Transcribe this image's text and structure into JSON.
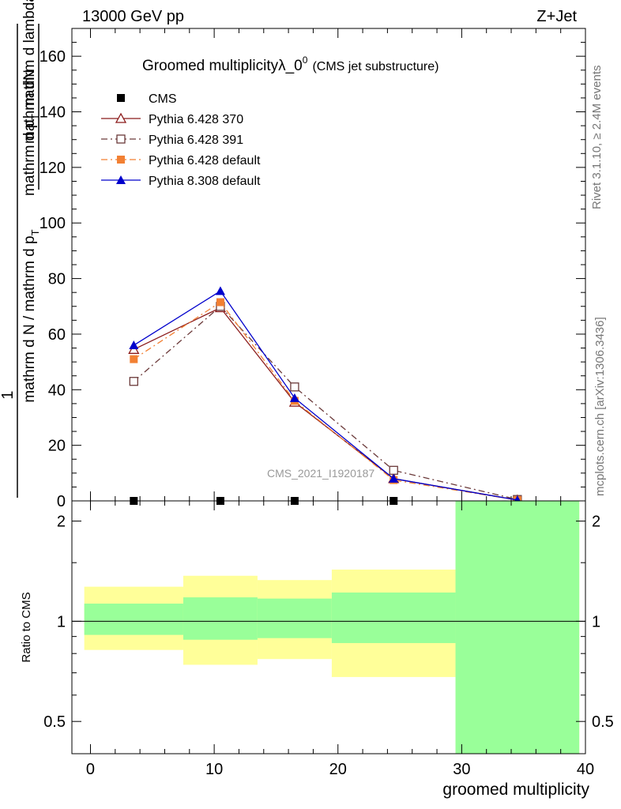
{
  "header": {
    "left": "13000 GeV pp",
    "right": "Z+Jet"
  },
  "side_labels": {
    "rivet": "Rivet 3.1.10, ≥ 2.4M events",
    "mcplots": "mcplots.cern.ch [arXiv:1306.3436]"
  },
  "chart_data": [
    {
      "type": "line",
      "title": "Groomed multiplicityλ_0",
      "title_superscript": "0",
      "subtitle": "(CMS jet substructure)",
      "watermark": "CMS_2021_I1920187",
      "ylabel_numerator": "mathrm dN",
      "ylabel_denominator": "mathrm d N / mathrm d p",
      "ylabel_denominator_sub": "T",
      "ylabel_denominator_cont": "mathrm d p",
      "ylabel_denominator_sub2": "T",
      "ylabel_denominator_end": "mathrm d lambda",
      "ylabel_prefix": "1",
      "ylim": [
        0,
        170
      ],
      "yticks": [
        0,
        20,
        40,
        60,
        80,
        100,
        120,
        140,
        160
      ],
      "xlim": [
        -1.5,
        40
      ],
      "x": [
        3.5,
        10.5,
        16.5,
        24.5,
        34.5
      ],
      "series": [
        {
          "name": "CMS",
          "color": "#000000",
          "marker": "square-filled",
          "dash": "none",
          "values": [
            0,
            0,
            0,
            0,
            0
          ]
        },
        {
          "name": "Pythia 6.428 370",
          "color": "#8b1a1a",
          "marker": "triangle-open",
          "dash": "solid",
          "values": [
            54.5,
            69.5,
            35.5,
            8.0,
            0.3
          ]
        },
        {
          "name": "Pythia 6.428 391",
          "color": "#6b3a3a",
          "marker": "square-open",
          "dash": "dashdot",
          "values": [
            43.0,
            70.0,
            41.0,
            11.0,
            0.5
          ]
        },
        {
          "name": "Pythia 6.428 default",
          "color": "#f28033",
          "marker": "square-filled",
          "dash": "dashdot",
          "values": [
            51.0,
            71.5,
            36.0,
            7.5,
            0.3
          ]
        },
        {
          "name": "Pythia 8.308 default",
          "color": "#0000cc",
          "marker": "triangle-filled",
          "dash": "solid",
          "values": [
            56.0,
            75.5,
            37.0,
            8.0,
            0.3
          ]
        }
      ],
      "legend_position": "top-left"
    },
    {
      "type": "area",
      "ylabel": "Ratio to CMS",
      "xlabel": "groomed multiplicity",
      "ylim": [
        0.4,
        2.3
      ],
      "log_y": true,
      "yticks": [
        0.5,
        1,
        2
      ],
      "ytick_labels": [
        "0.5",
        "1",
        "2"
      ],
      "xticks": [
        0,
        10,
        20,
        30,
        40
      ],
      "xtick_labels": [
        "0",
        "10",
        "20",
        "30",
        "40"
      ],
      "bands": [
        {
          "x_from": -0.5,
          "x_to": 7.5,
          "yellow": [
            0.82,
            1.27
          ],
          "green": [
            0.91,
            1.13
          ]
        },
        {
          "x_from": 7.5,
          "x_to": 13.5,
          "yellow": [
            0.74,
            1.37
          ],
          "green": [
            0.88,
            1.18
          ]
        },
        {
          "x_from": 13.5,
          "x_to": 19.5,
          "yellow": [
            0.77,
            1.33
          ],
          "green": [
            0.89,
            1.17
          ]
        },
        {
          "x_from": 19.5,
          "x_to": 29.5,
          "yellow": [
            0.68,
            1.43
          ],
          "green": [
            0.86,
            1.22
          ]
        },
        {
          "x_from": 29.5,
          "x_to": 39.5,
          "yellow": [
            0.4,
            2.3
          ],
          "green": [
            0.4,
            2.3
          ]
        }
      ],
      "band_colors": {
        "yellow": "#ffff99",
        "green": "#99ff99"
      },
      "reference_line": 1
    }
  ]
}
